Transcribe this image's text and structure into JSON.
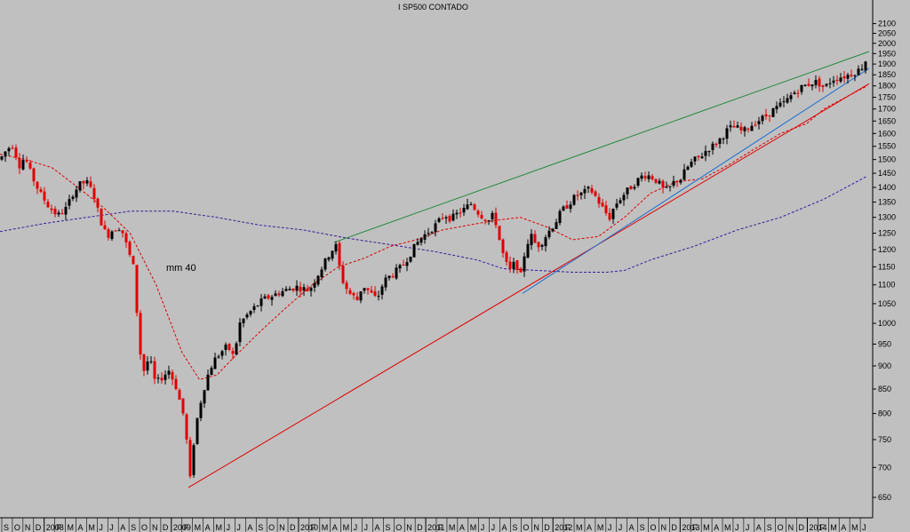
{
  "title": "I SP500 CONTADO",
  "chart_data": {
    "type": "candlestick",
    "title": "I SP500 CONTADO",
    "xlabel": "",
    "ylabel": "",
    "ylim": [
      618,
      2140
    ],
    "ytick_labels": [
      "650",
      "700",
      "750",
      "800",
      "850",
      "900",
      "950",
      "1000",
      "1050",
      "1100",
      "1150",
      "1200",
      "1250",
      "1300",
      "1350",
      "1400",
      "1450",
      "1500",
      "1550",
      "1600",
      "1650",
      "1700",
      "1750",
      "1800",
      "1850",
      "1900",
      "1950",
      "2000",
      "2050",
      "2100"
    ],
    "xtick_labels": [
      "S",
      "O",
      "N",
      "D",
      "2008",
      "F",
      "M",
      "A",
      "M",
      "J",
      "J",
      "A",
      "S",
      "O",
      "N",
      "D",
      "2009",
      "F",
      "M",
      "A",
      "M",
      "J",
      "J",
      "A",
      "S",
      "O",
      "N",
      "D",
      "2010",
      "F",
      "M",
      "A",
      "M",
      "J",
      "J",
      "A",
      "S",
      "O",
      "N",
      "D",
      "2011",
      "F",
      "M",
      "A",
      "M",
      "J",
      "J",
      "A",
      "S",
      "O",
      "N",
      "D",
      "2012",
      "F",
      "M",
      "A",
      "M",
      "J",
      "J",
      "A",
      "S",
      "O",
      "N",
      "D",
      "2013",
      "F",
      "M",
      "A",
      "M",
      "J",
      "J",
      "A",
      "S",
      "O",
      "N",
      "D",
      "2014",
      "F",
      "M",
      "A",
      "M",
      "J"
    ],
    "annotations": [
      {
        "text": "mm 40",
        "color": "#e00000"
      }
    ],
    "colors": {
      "background": "#c0c0c0",
      "up": "#000000",
      "down": "#e00000",
      "mm40": "#e00000",
      "mm200": "#3a1a9a",
      "upper_trend": "#1f8a3a",
      "lower_trend": "#e00000",
      "blue_trend": "#1c6fd0"
    },
    "price_path": [
      [
        0,
        1500
      ],
      [
        8,
        1540
      ],
      [
        14,
        1555
      ],
      [
        22,
        1480
      ],
      [
        28,
        1510
      ],
      [
        35,
        1445
      ],
      [
        45,
        1380
      ],
      [
        55,
        1335
      ],
      [
        65,
        1305
      ],
      [
        75,
        1330
      ],
      [
        82,
        1380
      ],
      [
        90,
        1410
      ],
      [
        97,
        1420
      ],
      [
        105,
        1380
      ],
      [
        112,
        1300
      ],
      [
        120,
        1240
      ],
      [
        128,
        1265
      ],
      [
        136,
        1270
      ],
      [
        145,
        1190
      ],
      [
        150,
        1150
      ],
      [
        155,
        1000
      ],
      [
        160,
        880
      ],
      [
        168,
        920
      ],
      [
        175,
        860
      ],
      [
        182,
        875
      ],
      [
        190,
        890
      ],
      [
        198,
        855
      ],
      [
        206,
        800
      ],
      [
        211,
        735
      ],
      [
        214,
        680
      ],
      [
        219,
        760
      ],
      [
        224,
        810
      ],
      [
        232,
        870
      ],
      [
        240,
        910
      ],
      [
        248,
        930
      ],
      [
        256,
        945
      ],
      [
        263,
        920
      ],
      [
        270,
        1000
      ],
      [
        282,
        1030
      ],
      [
        296,
        1060
      ],
      [
        315,
        1080
      ],
      [
        333,
        1095
      ],
      [
        348,
        1085
      ],
      [
        358,
        1130
      ],
      [
        366,
        1165
      ],
      [
        372,
        1195
      ],
      [
        378,
        1210
      ],
      [
        384,
        1120
      ],
      [
        392,
        1080
      ],
      [
        402,
        1060
      ],
      [
        408,
        1100
      ],
      [
        416,
        1080
      ],
      [
        424,
        1060
      ],
      [
        432,
        1110
      ],
      [
        442,
        1130
      ],
      [
        452,
        1150
      ],
      [
        462,
        1190
      ],
      [
        472,
        1230
      ],
      [
        482,
        1255
      ],
      [
        492,
        1280
      ],
      [
        500,
        1310
      ],
      [
        508,
        1295
      ],
      [
        514,
        1310
      ],
      [
        522,
        1325
      ],
      [
        530,
        1345
      ],
      [
        537,
        1320
      ],
      [
        544,
        1300
      ],
      [
        550,
        1290
      ],
      [
        556,
        1310
      ],
      [
        562,
        1230
      ],
      [
        568,
        1165
      ],
      [
        574,
        1140
      ],
      [
        580,
        1165
      ],
      [
        586,
        1125
      ],
      [
        592,
        1215
      ],
      [
        598,
        1240
      ],
      [
        604,
        1210
      ],
      [
        610,
        1225
      ],
      [
        616,
        1250
      ],
      [
        624,
        1280
      ],
      [
        632,
        1320
      ],
      [
        640,
        1345
      ],
      [
        648,
        1370
      ],
      [
        656,
        1380
      ],
      [
        664,
        1395
      ],
      [
        672,
        1360
      ],
      [
        680,
        1320
      ],
      [
        686,
        1300
      ],
      [
        692,
        1340
      ],
      [
        700,
        1370
      ],
      [
        708,
        1395
      ],
      [
        716,
        1420
      ],
      [
        724,
        1445
      ],
      [
        732,
        1440
      ],
      [
        740,
        1420
      ],
      [
        748,
        1385
      ],
      [
        754,
        1400
      ],
      [
        760,
        1425
      ],
      [
        766,
        1430
      ],
      [
        772,
        1465
      ],
      [
        780,
        1495
      ],
      [
        788,
        1510
      ],
      [
        796,
        1540
      ],
      [
        804,
        1555
      ],
      [
        812,
        1585
      ],
      [
        820,
        1620
      ],
      [
        828,
        1625
      ],
      [
        836,
        1605
      ],
      [
        844,
        1630
      ],
      [
        852,
        1650
      ],
      [
        860,
        1665
      ],
      [
        868,
        1690
      ],
      [
        876,
        1710
      ],
      [
        884,
        1730
      ],
      [
        892,
        1765
      ],
      [
        900,
        1790
      ],
      [
        908,
        1805
      ],
      [
        916,
        1820
      ],
      [
        922,
        1810
      ],
      [
        928,
        1790
      ],
      [
        936,
        1830
      ],
      [
        944,
        1840
      ],
      [
        952,
        1845
      ],
      [
        960,
        1860
      ],
      [
        968,
        1875
      ],
      [
        972,
        1900
      ],
      [
        978,
        1950
      ]
    ],
    "series": [
      {
        "name": "mm 40",
        "style": "dashed",
        "x_frac": [
          0.0,
          0.03,
          0.06,
          0.09,
          0.12,
          0.15,
          0.18,
          0.21,
          0.23,
          0.25,
          0.27,
          0.3,
          0.33,
          0.36,
          0.39,
          0.42,
          0.45,
          0.48,
          0.51,
          0.54,
          0.57,
          0.6,
          0.63,
          0.66,
          0.69,
          0.72,
          0.75,
          0.78,
          0.81,
          0.84,
          0.87,
          0.9,
          0.93,
          0.95,
          0.98,
          1.0
        ],
        "values": [
          1520,
          1500,
          1470,
          1400,
          1330,
          1250,
          1100,
          930,
          870,
          880,
          920,
          980,
          1040,
          1100,
          1150,
          1175,
          1210,
          1230,
          1260,
          1275,
          1290,
          1300,
          1270,
          1230,
          1240,
          1300,
          1380,
          1420,
          1430,
          1480,
          1540,
          1600,
          1640,
          1700,
          1760,
          1800
        ]
      },
      {
        "name": "mm 200",
        "style": "dashed",
        "x_frac": [
          0.0,
          0.05,
          0.1,
          0.15,
          0.2,
          0.25,
          0.3,
          0.35,
          0.4,
          0.45,
          0.5,
          0.55,
          0.58,
          0.62,
          0.66,
          0.7,
          0.72,
          0.75,
          0.8,
          0.85,
          0.9,
          0.95,
          1.0
        ],
        "values": [
          1255,
          1280,
          1300,
          1320,
          1320,
          1300,
          1275,
          1260,
          1235,
          1215,
          1195,
          1170,
          1145,
          1140,
          1135,
          1135,
          1140,
          1170,
          1210,
          1260,
          1300,
          1360,
          1440
        ]
      }
    ],
    "trendlines": [
      {
        "name": "upper-trend",
        "from": [
          376,
          1222
        ],
        "to": [
          978,
          1960
        ]
      },
      {
        "name": "lower-trend-red",
        "from": [
          212,
          666
        ],
        "to": [
          978,
          1810
        ]
      },
      {
        "name": "lower-trend-blue",
        "from": [
          588,
          1077
        ],
        "to": [
          978,
          1880
        ]
      }
    ]
  }
}
